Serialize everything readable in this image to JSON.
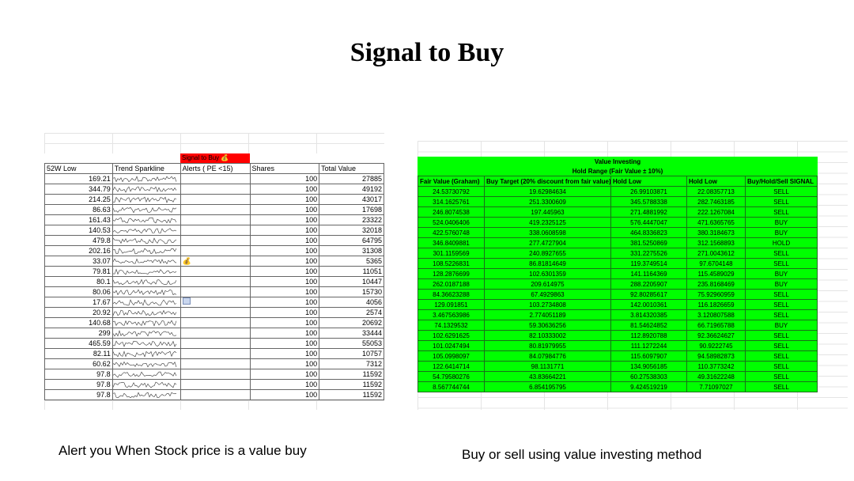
{
  "title": "Signal to Buy",
  "left_sheet": {
    "signal_tab": "Signal to Buy 💰",
    "headers": [
      "52W Low",
      "Trend Sparkline",
      "Alerts ( PE <15)",
      "Shares",
      "Total Value"
    ],
    "rows": [
      {
        "low": "169.21",
        "alert": "",
        "shares": "100",
        "total": "27885"
      },
      {
        "low": "344.79",
        "alert": "",
        "shares": "100",
        "total": "49192"
      },
      {
        "low": "214.25",
        "alert": "",
        "shares": "100",
        "total": "43017"
      },
      {
        "low": "86.63",
        "alert": "",
        "shares": "100",
        "total": "17698"
      },
      {
        "low": "161.43",
        "alert": "",
        "shares": "100",
        "total": "23322"
      },
      {
        "low": "140.53",
        "alert": "",
        "shares": "100",
        "total": "32018"
      },
      {
        "low": "479.8",
        "alert": "",
        "shares": "100",
        "total": "64795"
      },
      {
        "low": "202.16",
        "alert": "",
        "shares": "100",
        "total": "31308"
      },
      {
        "low": "33.07",
        "alert": "💰",
        "shares": "100",
        "total": "5365"
      },
      {
        "low": "79.81",
        "alert": "",
        "shares": "100",
        "total": "11051"
      },
      {
        "low": "80.1",
        "alert": "",
        "shares": "100",
        "total": "10447"
      },
      {
        "low": "80.06",
        "alert": "",
        "shares": "100",
        "total": "15730"
      },
      {
        "low": "17.67",
        "alert": "chart",
        "shares": "100",
        "total": "4056"
      },
      {
        "low": "20.92",
        "alert": "",
        "shares": "100",
        "total": "2574"
      },
      {
        "low": "140.68",
        "alert": "",
        "shares": "100",
        "total": "20692"
      },
      {
        "low": "299",
        "alert": "",
        "shares": "100",
        "total": "33444"
      },
      {
        "low": "465.59",
        "alert": "",
        "shares": "100",
        "total": "55053"
      },
      {
        "low": "82.11",
        "alert": "",
        "shares": "100",
        "total": "10757"
      },
      {
        "low": "60.62",
        "alert": "",
        "shares": "100",
        "total": "7312"
      },
      {
        "low": "97.8",
        "alert": "",
        "shares": "100",
        "total": "11592"
      },
      {
        "low": "97.8",
        "alert": "",
        "shares": "100",
        "total": "11592"
      },
      {
        "low": "97.8",
        "alert": "",
        "shares": "100",
        "total": "11592"
      }
    ]
  },
  "right_sheet": {
    "caption1": "Value Investing",
    "caption2": "Hold Range  (Fair Value ± 10%)",
    "headers": [
      "Fair Value (Graham)",
      "Buy Target (20% discount from fair value)",
      "Hold Low",
      "Hold Low",
      "Buy/Hold/Sell SIGNAL"
    ],
    "rows": [
      [
        "24.53730792",
        "19.62984634",
        "26.99103871",
        "22.08357713",
        "SELL"
      ],
      [
        "314.1625761",
        "251.3300609",
        "345.5788338",
        "282.7463185",
        "SELL"
      ],
      [
        "246.8074538",
        "197.445963",
        "271.4881992",
        "222.1267084",
        "SELL"
      ],
      [
        "524.0406406",
        "419.2325125",
        "576.4447047",
        "471.6365765",
        "BUY"
      ],
      [
        "422.5760748",
        "338.0608598",
        "464.8336823",
        "380.3184673",
        "BUY"
      ],
      [
        "346.8409881",
        "277.4727904",
        "381.5250869",
        "312.1568893",
        "HOLD"
      ],
      [
        "301.1159569",
        "240.8927655",
        "331.2275526",
        "271.0043612",
        "SELL"
      ],
      [
        "108.5226831",
        "86.81814649",
        "119.3749514",
        "97.6704148",
        "SELL"
      ],
      [
        "128.2876699",
        "102.6301359",
        "141.1164369",
        "115.4589029",
        "BUY"
      ],
      [
        "262.0187188",
        "209.614975",
        "288.2205907",
        "235.8168469",
        "BUY"
      ],
      [
        "84.36623288",
        "67.4929863",
        "92.80285617",
        "75.92960959",
        "SELL"
      ],
      [
        "129.091851",
        "103.2734808",
        "142.0010361",
        "116.1826659",
        "SELL"
      ],
      [
        "3.467563986",
        "2.774051189",
        "3.814320385",
        "3.120807588",
        "SELL"
      ],
      [
        "74.1329532",
        "59.30636256",
        "81.54624852",
        "66.71965788",
        "BUY"
      ],
      [
        "102.6291625",
        "82.10333002",
        "112.8920788",
        "92.36624627",
        "SELL"
      ],
      [
        "101.0247494",
        "80.81979955",
        "111.1272244",
        "90.9222745",
        "SELL"
      ],
      [
        "105.0998097",
        "84.07984776",
        "115.6097907",
        "94.58982873",
        "SELL"
      ],
      [
        "122.6414714",
        "98.1131771",
        "134.9056185",
        "110.3773242",
        "SELL"
      ],
      [
        "54.79580276",
        "43.83664221",
        "60.27538303",
        "49.31622248",
        "SELL"
      ],
      [
        "8.567744744",
        "6.854195795",
        "9.424519219",
        "7.71097027",
        "SELL"
      ]
    ]
  },
  "caption_left": "Alert you When Stock price is a value buy",
  "caption_right": "Buy or sell using value investing method"
}
